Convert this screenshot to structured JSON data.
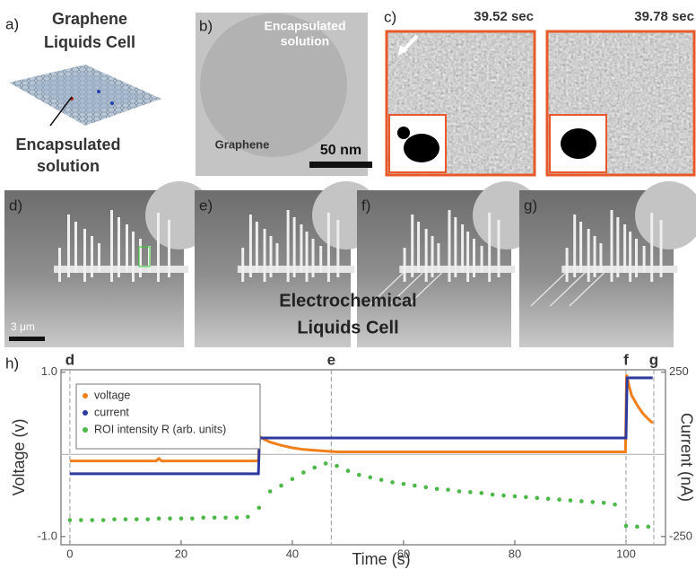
{
  "panels": {
    "a": {
      "label": "a)",
      "title": [
        "Graphene",
        "Liquids Cell"
      ],
      "annotation": [
        "Encapsulated",
        "solution"
      ]
    },
    "b": {
      "label": "b)",
      "annotation": [
        "Encapsulated",
        "solution"
      ],
      "region": "Graphene",
      "scale_bar": "50 nm"
    },
    "c": {
      "label": "c)",
      "times": [
        "39.52 sec",
        "39.78 sec"
      ]
    },
    "d": {
      "label": "d)",
      "scale_bar": "3 μm"
    },
    "e": {
      "label": "e)"
    },
    "f": {
      "label": "f)"
    },
    "g": {
      "label": "g)"
    },
    "row_caption": [
      "Electrochemical",
      "Liquids Cell"
    ],
    "h": {
      "label": "h)"
    }
  },
  "chart_data": {
    "type": "line",
    "x_label": "Time (s)",
    "y_label": "Voltage (v)",
    "y2_label": "Current (nA)",
    "xlim": [
      -1.6,
      107.1
    ],
    "xticks": [
      0,
      20,
      40,
      60,
      80,
      100
    ],
    "ylim": [
      -1.1,
      1.03
    ],
    "yticks": [
      {
        "value": -1.0,
        "label": "-1.0"
      },
      {
        "value": 1.0,
        "label": "1.0"
      }
    ],
    "y2lim": [
      -275,
      257.5
    ],
    "y2ticks": [
      -250,
      250
    ],
    "legend": "upper left",
    "markers": [
      {
        "label": "d",
        "x": 0
      },
      {
        "label": "e",
        "x": 47
      },
      {
        "label": "f",
        "x": 100
      },
      {
        "label": "g",
        "x": 105
      }
    ],
    "series": [
      {
        "name": "voltage",
        "color": "#f07f1c",
        "style": "line",
        "x": [
          0,
          10,
          15.5,
          16,
          16.5,
          25,
          33.9,
          34.1,
          35,
          36,
          38,
          40,
          42,
          44,
          46,
          48,
          55,
          70,
          85,
          99.9,
          100.1,
          100.5,
          101,
          102,
          103,
          104,
          104.8
        ],
        "values": [
          -0.08,
          -0.08,
          -0.08,
          -0.05,
          -0.08,
          -0.08,
          -0.08,
          0.22,
          0.18,
          0.15,
          0.11,
          0.08,
          0.06,
          0.05,
          0.04,
          0.03,
          0.03,
          0.03,
          0.03,
          0.03,
          0.97,
          0.85,
          0.72,
          0.6,
          0.5,
          0.43,
          0.38
        ]
      },
      {
        "name": "current",
        "color": "#2e3a9e",
        "style": "line",
        "axis": "y2",
        "x": [
          0,
          33.9,
          34.1,
          100,
          100.2,
          104.8
        ],
        "values": [
          -59,
          -59,
          50,
          50,
          233,
          233
        ]
      },
      {
        "name": "ROI intensity R (arb. units)",
        "color": "#4cb848",
        "style": "dots",
        "x": [
          0,
          2,
          4,
          6,
          8,
          10,
          12,
          14,
          16,
          18,
          20,
          22,
          24,
          26,
          28,
          30,
          32,
          34,
          36,
          38,
          40,
          42,
          44,
          46,
          48,
          50,
          52,
          54,
          56,
          58,
          60,
          62,
          64,
          66,
          68,
          70,
          72,
          74,
          76,
          78,
          80,
          82,
          84,
          86,
          88,
          90,
          92,
          94,
          96,
          98,
          100,
          102,
          104
        ],
        "values": [
          -0.8,
          -0.8,
          -0.8,
          -0.8,
          -0.79,
          -0.79,
          -0.79,
          -0.79,
          -0.78,
          -0.78,
          -0.78,
          -0.78,
          -0.77,
          -0.77,
          -0.77,
          -0.77,
          -0.76,
          -0.65,
          -0.45,
          -0.38,
          -0.3,
          -0.22,
          -0.16,
          -0.11,
          -0.14,
          -0.2,
          -0.25,
          -0.28,
          -0.31,
          -0.34,
          -0.36,
          -0.38,
          -0.4,
          -0.42,
          -0.43,
          -0.45,
          -0.46,
          -0.47,
          -0.49,
          -0.5,
          -0.51,
          -0.52,
          -0.53,
          -0.54,
          -0.55,
          -0.56,
          -0.57,
          -0.58,
          -0.59,
          -0.61,
          -0.87,
          -0.88,
          -0.88
        ]
      }
    ]
  }
}
